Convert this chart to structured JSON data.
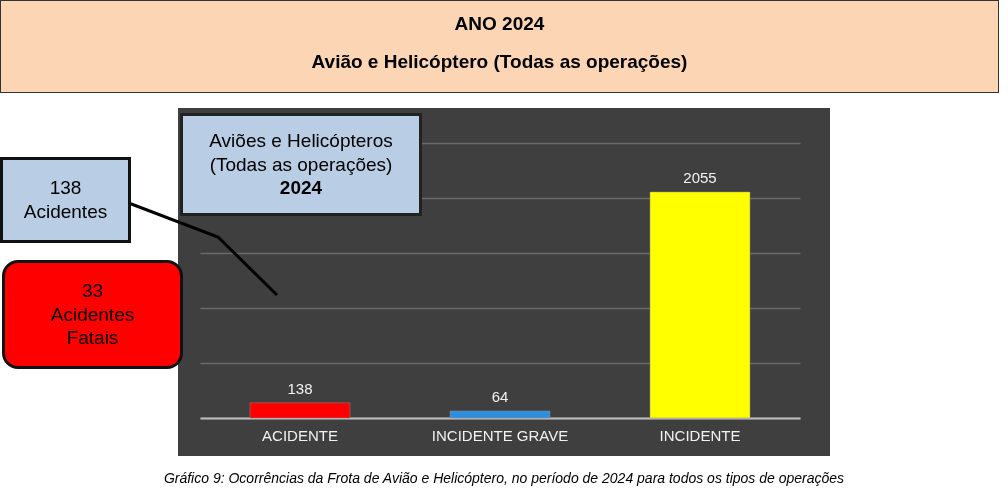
{
  "chart_data": {
    "type": "bar",
    "title": "ANO 2024",
    "subtitle": "Avião e Helicóptero (Todas as operações)",
    "categories": [
      "ACIDENTE",
      "INCIDENTE GRAVE",
      "INCIDENTE"
    ],
    "values": [
      138,
      64,
      2055
    ],
    "colors": [
      "#ff0000",
      "#2e8fe0",
      "#ffff00"
    ],
    "ylim": [
      0,
      2500
    ],
    "yticks": [
      {
        "value": 0,
        "label": null
      },
      {
        "value": 500,
        "label": null
      },
      {
        "value": 1000,
        "label": null
      },
      {
        "value": 1500,
        "label": null
      },
      {
        "value": 2000,
        "label": null
      },
      {
        "value": 2500,
        "label": null
      }
    ],
    "grid": "y",
    "data_labels": true,
    "annotations": [
      "Aviões e Helicópteros\n(Todas as operações)\n2024",
      "138\nAcidentes",
      "33\nAcidentes\nFatais",
      "Gráfico 9: Ocorrências da Frota de Avião e Helicóptero, no período de 2024 para todos os tipos de operações"
    ]
  }
}
